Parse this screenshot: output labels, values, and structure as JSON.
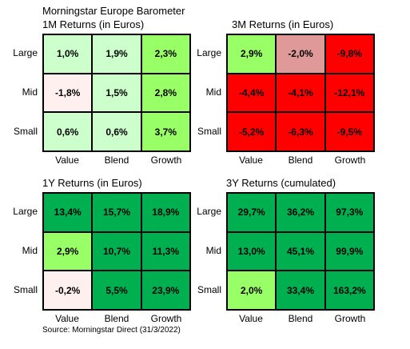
{
  "title": "Morningstar Europe Barometer",
  "source": "Source: Morningstar Direct (31/3/2022)",
  "colors": {
    "light_green": "#ccffcc",
    "bright_green": "#99ff66",
    "mid_green": "#99ff66",
    "dark_green": "#00b050",
    "pale_pink": "#fff0f0",
    "red": "#ff0000",
    "rose": "#e09999"
  },
  "chart_data": [
    {
      "type": "heatmap",
      "title": "1M Returns (in Euros)",
      "rows": [
        "Large",
        "Mid",
        "Small"
      ],
      "columns": [
        "Value",
        "Blend",
        "Growth"
      ],
      "values": [
        [
          "1,0%",
          "1,9%",
          "2,3%"
        ],
        [
          "-1,8%",
          "1,5%",
          "2,8%"
        ],
        [
          "0,6%",
          "0,6%",
          "3,7%"
        ]
      ],
      "fills": [
        [
          "#ccffcc",
          "#ccffcc",
          "#99ff66"
        ],
        [
          "#fff0f0",
          "#ccffcc",
          "#99ff66"
        ],
        [
          "#ccffcc",
          "#ccffcc",
          "#99ff66"
        ]
      ]
    },
    {
      "type": "heatmap",
      "title": "3M Returns (in Euros)",
      "rows": [
        "Large",
        "Mid",
        "Small"
      ],
      "columns": [
        "Value",
        "Blend",
        "Growth"
      ],
      "values": [
        [
          "2,9%",
          "-2,0%",
          "-9,8%"
        ],
        [
          "-4,4%",
          "-4,1%",
          "-12,1%"
        ],
        [
          "-5,2%",
          "-6,3%",
          "-9,5%"
        ]
      ],
      "fills": [
        [
          "#99ff66",
          "#e09999",
          "#ff0000"
        ],
        [
          "#ff0000",
          "#ff0000",
          "#ff0000"
        ],
        [
          "#ff0000",
          "#ff0000",
          "#ff0000"
        ]
      ]
    },
    {
      "type": "heatmap",
      "title": "1Y Returns (in Euros)",
      "rows": [
        "Large",
        "Mid",
        "Small"
      ],
      "columns": [
        "Value",
        "Blend",
        "Growth"
      ],
      "values": [
        [
          "13,4%",
          "15,7%",
          "18,9%"
        ],
        [
          "2,9%",
          "10,7%",
          "11,3%"
        ],
        [
          "-0,2%",
          "5,5%",
          "23,9%"
        ]
      ],
      "fills": [
        [
          "#00b050",
          "#00b050",
          "#00b050"
        ],
        [
          "#99ff66",
          "#00b050",
          "#00b050"
        ],
        [
          "#fff0f0",
          "#00b050",
          "#00b050"
        ]
      ]
    },
    {
      "type": "heatmap",
      "title": "3Y Returns (cumulated)",
      "rows": [
        "Large",
        "Mid",
        "Small"
      ],
      "columns": [
        "Value",
        "Blend",
        "Growth"
      ],
      "values": [
        [
          "29,7%",
          "36,2%",
          "97,3%"
        ],
        [
          "13,0%",
          "45,1%",
          "99,9%"
        ],
        [
          "2,0%",
          "33,4%",
          "163,2%"
        ]
      ],
      "fills": [
        [
          "#00b050",
          "#00b050",
          "#00b050"
        ],
        [
          "#00b050",
          "#00b050",
          "#00b050"
        ],
        [
          "#99ff66",
          "#00b050",
          "#00b050"
        ]
      ]
    }
  ]
}
